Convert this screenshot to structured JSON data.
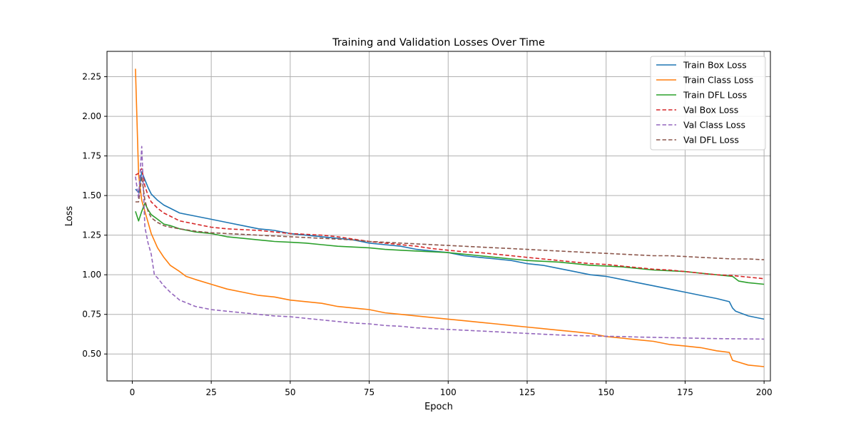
{
  "chart_data": {
    "type": "line",
    "title": "Training and Validation Losses Over Time",
    "xlabel": "Epoch",
    "ylabel": "Loss",
    "xlim": [
      -8,
      202
    ],
    "ylim": [
      0.33,
      2.41
    ],
    "xticks": [
      0,
      25,
      50,
      75,
      100,
      125,
      150,
      175,
      200
    ],
    "yticks": [
      0.5,
      0.75,
      1.0,
      1.25,
      1.5,
      1.75,
      2.0,
      2.25
    ],
    "xtick_labels": [
      "0",
      "25",
      "50",
      "75",
      "100",
      "125",
      "150",
      "175",
      "200"
    ],
    "ytick_labels": [
      "0.50",
      "0.75",
      "1.00",
      "1.25",
      "1.50",
      "1.75",
      "2.00",
      "2.25"
    ],
    "grid": true,
    "legend_position": "top-right",
    "series": [
      {
        "name": "Train Box Loss",
        "color": "#1f77b4",
        "dash": "solid",
        "points": [
          [
            1,
            1.54
          ],
          [
            2,
            1.52
          ],
          [
            3,
            1.65
          ],
          [
            4,
            1.6
          ],
          [
            5,
            1.55
          ],
          [
            6,
            1.51
          ],
          [
            8,
            1.47
          ],
          [
            10,
            1.44
          ],
          [
            12,
            1.42
          ],
          [
            15,
            1.39
          ],
          [
            20,
            1.37
          ],
          [
            25,
            1.35
          ],
          [
            30,
            1.33
          ],
          [
            35,
            1.31
          ],
          [
            40,
            1.29
          ],
          [
            45,
            1.28
          ],
          [
            50,
            1.26
          ],
          [
            55,
            1.25
          ],
          [
            60,
            1.24
          ],
          [
            65,
            1.23
          ],
          [
            70,
            1.22
          ],
          [
            75,
            1.2
          ],
          [
            80,
            1.19
          ],
          [
            85,
            1.18
          ],
          [
            90,
            1.16
          ],
          [
            95,
            1.15
          ],
          [
            100,
            1.14
          ],
          [
            105,
            1.12
          ],
          [
            110,
            1.11
          ],
          [
            115,
            1.1
          ],
          [
            120,
            1.09
          ],
          [
            125,
            1.07
          ],
          [
            130,
            1.06
          ],
          [
            135,
            1.04
          ],
          [
            140,
            1.02
          ],
          [
            145,
            1.0
          ],
          [
            150,
            0.99
          ],
          [
            155,
            0.97
          ],
          [
            160,
            0.95
          ],
          [
            165,
            0.93
          ],
          [
            170,
            0.91
          ],
          [
            175,
            0.89
          ],
          [
            180,
            0.87
          ],
          [
            185,
            0.85
          ],
          [
            189,
            0.83
          ],
          [
            190,
            0.79
          ],
          [
            191,
            0.77
          ],
          [
            195,
            0.74
          ],
          [
            200,
            0.72
          ]
        ]
      },
      {
        "name": "Train Class Loss",
        "color": "#ff7f0e",
        "dash": "solid",
        "points": [
          [
            1,
            2.3
          ],
          [
            2,
            1.63
          ],
          [
            3,
            1.47
          ],
          [
            4,
            1.4
          ],
          [
            5,
            1.33
          ],
          [
            6,
            1.26
          ],
          [
            8,
            1.17
          ],
          [
            10,
            1.11
          ],
          [
            12,
            1.06
          ],
          [
            15,
            1.02
          ],
          [
            17,
            0.99
          ],
          [
            20,
            0.97
          ],
          [
            25,
            0.94
          ],
          [
            30,
            0.91
          ],
          [
            35,
            0.89
          ],
          [
            40,
            0.87
          ],
          [
            45,
            0.86
          ],
          [
            50,
            0.84
          ],
          [
            55,
            0.83
          ],
          [
            60,
            0.82
          ],
          [
            65,
            0.8
          ],
          [
            70,
            0.79
          ],
          [
            75,
            0.78
          ],
          [
            80,
            0.76
          ],
          [
            85,
            0.75
          ],
          [
            90,
            0.74
          ],
          [
            95,
            0.73
          ],
          [
            100,
            0.72
          ],
          [
            105,
            0.71
          ],
          [
            110,
            0.7
          ],
          [
            115,
            0.69
          ],
          [
            120,
            0.68
          ],
          [
            125,
            0.67
          ],
          [
            130,
            0.66
          ],
          [
            135,
            0.65
          ],
          [
            140,
            0.64
          ],
          [
            145,
            0.63
          ],
          [
            150,
            0.61
          ],
          [
            155,
            0.6
          ],
          [
            160,
            0.59
          ],
          [
            165,
            0.58
          ],
          [
            170,
            0.56
          ],
          [
            175,
            0.55
          ],
          [
            180,
            0.54
          ],
          [
            185,
            0.52
          ],
          [
            189,
            0.51
          ],
          [
            190,
            0.46
          ],
          [
            195,
            0.43
          ],
          [
            200,
            0.42
          ]
        ]
      },
      {
        "name": "Train DFL Loss",
        "color": "#2ca02c",
        "dash": "solid",
        "points": [
          [
            1,
            1.4
          ],
          [
            2,
            1.34
          ],
          [
            3,
            1.4
          ],
          [
            4,
            1.45
          ],
          [
            5,
            1.41
          ],
          [
            6,
            1.38
          ],
          [
            8,
            1.35
          ],
          [
            10,
            1.32
          ],
          [
            12,
            1.31
          ],
          [
            15,
            1.29
          ],
          [
            20,
            1.27
          ],
          [
            25,
            1.26
          ],
          [
            30,
            1.24
          ],
          [
            35,
            1.23
          ],
          [
            40,
            1.22
          ],
          [
            45,
            1.21
          ],
          [
            50,
            1.205
          ],
          [
            55,
            1.2
          ],
          [
            60,
            1.19
          ],
          [
            65,
            1.18
          ],
          [
            70,
            1.175
          ],
          [
            75,
            1.17
          ],
          [
            80,
            1.16
          ],
          [
            85,
            1.155
          ],
          [
            90,
            1.15
          ],
          [
            95,
            1.145
          ],
          [
            100,
            1.14
          ],
          [
            105,
            1.13
          ],
          [
            110,
            1.12
          ],
          [
            115,
            1.11
          ],
          [
            120,
            1.1
          ],
          [
            125,
            1.09
          ],
          [
            130,
            1.085
          ],
          [
            135,
            1.08
          ],
          [
            140,
            1.07
          ],
          [
            145,
            1.06
          ],
          [
            150,
            1.055
          ],
          [
            155,
            1.05
          ],
          [
            160,
            1.04
          ],
          [
            165,
            1.03
          ],
          [
            170,
            1.025
          ],
          [
            175,
            1.02
          ],
          [
            180,
            1.01
          ],
          [
            185,
            1.0
          ],
          [
            190,
            0.99
          ],
          [
            192,
            0.96
          ],
          [
            195,
            0.95
          ],
          [
            200,
            0.94
          ]
        ]
      },
      {
        "name": "Val Box Loss",
        "color": "#d62728",
        "dash": "dashed",
        "points": [
          [
            1,
            1.63
          ],
          [
            2,
            1.64
          ],
          [
            3,
            1.67
          ],
          [
            4,
            1.56
          ],
          [
            5,
            1.5
          ],
          [
            6,
            1.46
          ],
          [
            8,
            1.42
          ],
          [
            10,
            1.39
          ],
          [
            12,
            1.37
          ],
          [
            15,
            1.34
          ],
          [
            20,
            1.32
          ],
          [
            25,
            1.3
          ],
          [
            30,
            1.29
          ],
          [
            35,
            1.285
          ],
          [
            40,
            1.28
          ],
          [
            45,
            1.27
          ],
          [
            50,
            1.26
          ],
          [
            55,
            1.255
          ],
          [
            60,
            1.25
          ],
          [
            65,
            1.24
          ],
          [
            70,
            1.225
          ],
          [
            75,
            1.21
          ],
          [
            80,
            1.2
          ],
          [
            85,
            1.19
          ],
          [
            90,
            1.18
          ],
          [
            95,
            1.165
          ],
          [
            100,
            1.155
          ],
          [
            105,
            1.145
          ],
          [
            110,
            1.14
          ],
          [
            115,
            1.13
          ],
          [
            120,
            1.12
          ],
          [
            125,
            1.11
          ],
          [
            130,
            1.1
          ],
          [
            135,
            1.09
          ],
          [
            140,
            1.08
          ],
          [
            145,
            1.07
          ],
          [
            150,
            1.065
          ],
          [
            155,
            1.055
          ],
          [
            160,
            1.045
          ],
          [
            165,
            1.035
          ],
          [
            170,
            1.03
          ],
          [
            175,
            1.02
          ],
          [
            180,
            1.01
          ],
          [
            185,
            1.0
          ],
          [
            190,
            0.995
          ],
          [
            195,
            0.985
          ],
          [
            200,
            0.975
          ]
        ]
      },
      {
        "name": "Val Class Loss",
        "color": "#9467bd",
        "dash": "dashed",
        "points": [
          [
            1,
            1.62
          ],
          [
            2,
            1.48
          ],
          [
            3,
            1.81
          ],
          [
            4,
            1.3
          ],
          [
            5,
            1.2
          ],
          [
            6,
            1.13
          ],
          [
            7,
            1.0
          ],
          [
            8,
            0.98
          ],
          [
            10,
            0.93
          ],
          [
            12,
            0.89
          ],
          [
            15,
            0.84
          ],
          [
            20,
            0.8
          ],
          [
            25,
            0.78
          ],
          [
            30,
            0.77
          ],
          [
            35,
            0.76
          ],
          [
            40,
            0.75
          ],
          [
            45,
            0.74
          ],
          [
            50,
            0.735
          ],
          [
            55,
            0.725
          ],
          [
            60,
            0.715
          ],
          [
            65,
            0.705
          ],
          [
            70,
            0.695
          ],
          [
            75,
            0.69
          ],
          [
            80,
            0.68
          ],
          [
            85,
            0.675
          ],
          [
            90,
            0.665
          ],
          [
            95,
            0.66
          ],
          [
            100,
            0.655
          ],
          [
            105,
            0.65
          ],
          [
            110,
            0.645
          ],
          [
            115,
            0.64
          ],
          [
            120,
            0.635
          ],
          [
            125,
            0.63
          ],
          [
            130,
            0.625
          ],
          [
            135,
            0.62
          ],
          [
            140,
            0.617
          ],
          [
            145,
            0.614
          ],
          [
            150,
            0.612
          ],
          [
            155,
            0.61
          ],
          [
            160,
            0.607
          ],
          [
            165,
            0.605
          ],
          [
            170,
            0.603
          ],
          [
            175,
            0.601
          ],
          [
            180,
            0.599
          ],
          [
            185,
            0.597
          ],
          [
            190,
            0.596
          ],
          [
            195,
            0.595
          ],
          [
            200,
            0.594
          ]
        ]
      },
      {
        "name": "Val DFL Loss",
        "color": "#8c564b",
        "dash": "dashed",
        "points": [
          [
            1,
            1.46
          ],
          [
            2,
            1.46
          ],
          [
            3,
            1.62
          ],
          [
            4,
            1.47
          ],
          [
            5,
            1.4
          ],
          [
            6,
            1.36
          ],
          [
            8,
            1.33
          ],
          [
            10,
            1.31
          ],
          [
            12,
            1.3
          ],
          [
            15,
            1.29
          ],
          [
            20,
            1.275
          ],
          [
            25,
            1.265
          ],
          [
            30,
            1.26
          ],
          [
            35,
            1.255
          ],
          [
            40,
            1.25
          ],
          [
            45,
            1.245
          ],
          [
            50,
            1.24
          ],
          [
            55,
            1.235
          ],
          [
            60,
            1.23
          ],
          [
            65,
            1.225
          ],
          [
            70,
            1.22
          ],
          [
            75,
            1.21
          ],
          [
            80,
            1.205
          ],
          [
            85,
            1.2
          ],
          [
            90,
            1.195
          ],
          [
            95,
            1.19
          ],
          [
            100,
            1.185
          ],
          [
            105,
            1.18
          ],
          [
            110,
            1.175
          ],
          [
            115,
            1.17
          ],
          [
            120,
            1.165
          ],
          [
            125,
            1.16
          ],
          [
            130,
            1.155
          ],
          [
            135,
            1.15
          ],
          [
            140,
            1.145
          ],
          [
            145,
            1.14
          ],
          [
            150,
            1.135
          ],
          [
            155,
            1.13
          ],
          [
            160,
            1.125
          ],
          [
            165,
            1.12
          ],
          [
            170,
            1.12
          ],
          [
            175,
            1.115
          ],
          [
            180,
            1.11
          ],
          [
            185,
            1.105
          ],
          [
            190,
            1.1
          ],
          [
            195,
            1.1
          ],
          [
            200,
            1.095
          ]
        ]
      }
    ]
  }
}
